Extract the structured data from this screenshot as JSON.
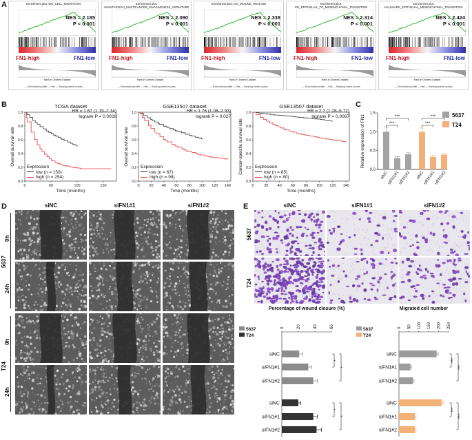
{
  "panel_labels": {
    "a": "A",
    "b": "B",
    "c": "C",
    "d": "D",
    "e": "E"
  },
  "gsea": [
    {
      "title": "Enrichment plot: WU_CELL_MIGRATION",
      "nes": "NES = 2.185",
      "p": "P < 0.001"
    },
    {
      "title": "Enrichment plot: ANASTASSIOU_MULTICANCER_INVASIVENESS_SIGNATURE",
      "nes": "NES = 2.090",
      "p": "P < 0.001"
    },
    {
      "title": "Enrichment plot: GO_WOUND_HEALING",
      "nes": "NES = 2.338",
      "p": "P < 0.001"
    },
    {
      "title": "Enrichment plot: GO_EPITHELIAL_TO_MESENCHYMAL_TRANSITION",
      "nes": "NES = 2.314",
      "p": "P < 0.001"
    },
    {
      "title": "Enrichment plot: HALLMARK_EPITHELIAL_MESENCHYMAL_TRANSITION",
      "nes": "NES = 2.424",
      "p": "P < 0.001"
    }
  ],
  "gsea_common": {
    "high": "FN1-high",
    "low": "FN1-low",
    "legend": "— Enrichment profile   — Hits   — Ranking metric scores",
    "es_axis": "Enrichment score (ES)",
    "rank_axis": "Ranked list metric (Signal2Noise)",
    "rank_x": "Rank in Ordered Dataset",
    "zero_cross": "Zero cross at 9995",
    "pos_corr": "'high' (positively correlated)",
    "neg_corr": "'low' (negatively correlated)",
    "ticks": [
      "0",
      "2,500",
      "5,000",
      "7,500",
      "10,000",
      "12,500",
      "15,000",
      "17,500",
      "20,000"
    ]
  },
  "km": [
    {
      "title": "TCGA dataset",
      "hr": "HR = 1.67 (1.19–2.34)",
      "logrank": "logrank P = 0.0028",
      "ylabel": "Overall survival rate",
      "xlabel": "Time (months)",
      "expr": "Expression",
      "low": "low (n = 150)",
      "high": "high (n = 254)",
      "xticks": [
        "0",
        "50",
        "100",
        "150"
      ],
      "yticks": [
        "0.0",
        "0.2",
        "0.4",
        "0.6",
        "0.8",
        "1.0"
      ]
    },
    {
      "title": "GSE13507 dataset",
      "hr": "HR = 1.76 (1.06–2.93)",
      "logrank": "logrank P = 0.027",
      "ylabel": "Overall survival rate",
      "xlabel": "Time (months)",
      "expr": "Expression",
      "low": "low (n = 67)",
      "high": "high (n = 98)",
      "xticks": [
        "0",
        "20",
        "40",
        "60",
        "80",
        "100",
        "120",
        "140"
      ],
      "yticks": [
        "0.0",
        "0.2",
        "0.4",
        "0.6",
        "0.8",
        "1.0"
      ]
    },
    {
      "title": "GSE13507 dataset",
      "hr": "HR = 2.7 (1.28–5.72)",
      "logrank": "logrank P = 0.0067",
      "ylabel": "Cancer-specific survival rate",
      "xlabel": "Time (months)",
      "expr": "Expression",
      "low": "low (n = 85)",
      "high": "high (n = 80)",
      "xticks": [
        "0",
        "20",
        "40",
        "60",
        "80",
        "100",
        "120",
        "140"
      ],
      "yticks": [
        "0.0",
        "0.2",
        "0.4",
        "0.6",
        "0.8",
        "1.0"
      ]
    }
  ],
  "panel_c": {
    "ylabel": "Relative expression of FN1",
    "yticks": [
      "0.0",
      "0.5",
      "1.0",
      "1.5"
    ],
    "legend": [
      "5637",
      "T24"
    ],
    "colors": {
      "c5637": "#a3a3a3",
      "cT24": "#f4b177"
    },
    "sig": "***"
  },
  "panel_d": {
    "cols": [
      "siNC",
      "siFN1#1",
      "siFN1#2"
    ],
    "groups": [
      "5637",
      "T24"
    ],
    "times": [
      "0h",
      "24h"
    ]
  },
  "panel_e": {
    "cols": [
      "siNC",
      "siFN1#1",
      "siFN1#2"
    ],
    "rows": [
      "5637",
      "T24"
    ]
  },
  "wound_chart": {
    "title": "Percentage of wound closure (%)",
    "ticks": [
      "0",
      "20",
      "40",
      "60"
    ],
    "legend": [
      "5637",
      "T24"
    ],
    "sig": "*"
  },
  "migr_chart": {
    "title": "Migrated cell number",
    "ticks": [
      "0",
      "50",
      "100",
      "150",
      "200",
      "250"
    ],
    "legend": [
      "5637",
      "T24"
    ],
    "sig": "***"
  },
  "chart_data": [
    {
      "type": "bar",
      "title": "Relative expression of FN1",
      "categories": [
        "siNC",
        "siFN1#1",
        "siFN1#2"
      ],
      "series": [
        {
          "name": "5637",
          "values": [
            1.0,
            0.3,
            0.4
          ],
          "errors": [
            0.12,
            0.04,
            0.04
          ]
        },
        {
          "name": "T24",
          "values": [
            1.0,
            0.33,
            0.39
          ],
          "errors": [
            0.1,
            0.04,
            0.03
          ]
        }
      ],
      "ylim": [
        0,
        1.5
      ]
    },
    {
      "type": "bar",
      "title": "Percentage of wound closure (%)",
      "categories": [
        "siNC",
        "siFN1#1",
        "siFN1#2"
      ],
      "series": [
        {
          "name": "5637",
          "values": [
            21,
            32,
            38
          ],
          "errors": [
            4,
            4,
            5
          ]
        },
        {
          "name": "T24",
          "values": [
            20,
            38,
            42
          ],
          "errors": [
            3,
            5,
            6
          ]
        }
      ],
      "xlim": [
        0,
        60
      ],
      "orientation": "horizontal"
    },
    {
      "type": "bar",
      "title": "Migrated cell number",
      "categories": [
        "siNC",
        "siFN1#1",
        "siFN1#2"
      ],
      "series": [
        {
          "name": "5637",
          "values": [
            190,
            58,
            70
          ],
          "errors": [
            8,
            5,
            6
          ]
        },
        {
          "name": "T24",
          "values": [
            215,
            80,
            80
          ],
          "errors": [
            8,
            6,
            6
          ]
        }
      ],
      "xlim": [
        0,
        250
      ],
      "orientation": "horizontal"
    }
  ]
}
